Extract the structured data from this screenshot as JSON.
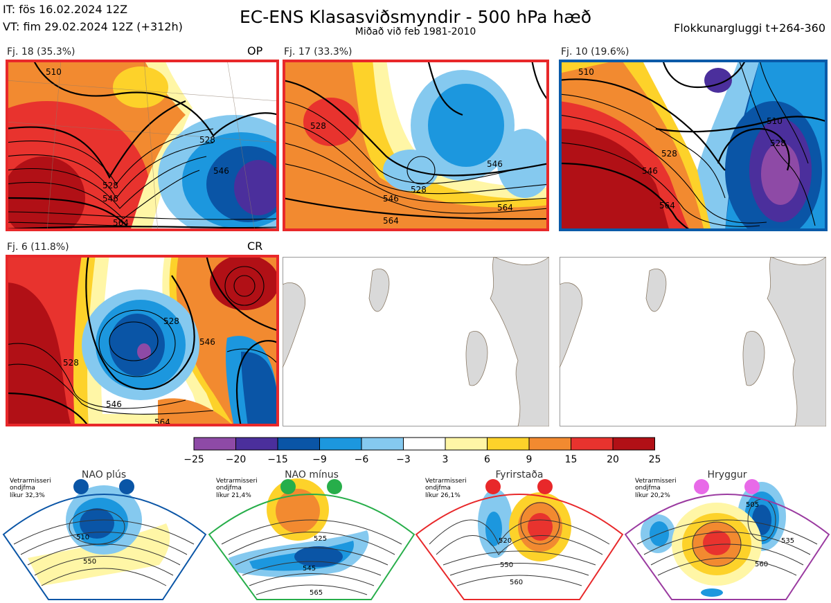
{
  "header": {
    "init_time": "IT: fös 16.02.2024 12Z",
    "valid_time": "VT: fim 29.02.2024 12Z  (+312h)",
    "title": "EC-ENS Klasasviðsmyndir - 500 hPa hæð",
    "subtitle": "Miðað við feb 1981-2010",
    "window": "Flokkunargluggi t+264-360"
  },
  "panels": [
    {
      "label": "Fj. 18 (35.3%)",
      "tag": "OP",
      "border_color": "#e8282a",
      "contours": [
        "510",
        "528",
        "546",
        "564",
        "528",
        "546"
      ]
    },
    {
      "label": "Fj. 17 (33.3%)",
      "tag": "",
      "border_color": "#e8282a",
      "contours": [
        "528",
        "528",
        "546",
        "546",
        "564",
        "564"
      ]
    },
    {
      "label": "Fj. 10 (19.6%)",
      "tag": "",
      "border_color": "#0a5aa8",
      "contours": [
        "510",
        "528",
        "546",
        "564",
        "510",
        "528"
      ]
    },
    {
      "label": "Fj. 6 (11.8%)",
      "tag": "CR",
      "border_color": "#e8282a",
      "contours": [
        "528",
        "528",
        "546",
        "546",
        "564"
      ]
    }
  ],
  "colorbar": {
    "colors": [
      "#8e4aa6",
      "#4b2f9c",
      "#0a55a6",
      "#1c97de",
      "#85c9ef",
      "#ffffff",
      "#fff6a6",
      "#fdd22a",
      "#f28a30",
      "#e8332e",
      "#b11016"
    ],
    "labels": [
      "−25",
      "−20",
      "−15",
      "−9",
      "−6",
      "−3",
      "3",
      "6",
      "9",
      "15",
      "20",
      "25"
    ]
  },
  "regimes": [
    {
      "name": "NAO plús",
      "color": "#0a55a6",
      "info": [
        "Vetrarmisseri",
        "ondjfma",
        "líkur 32,3%"
      ],
      "contours": [
        "510",
        "550"
      ]
    },
    {
      "name": "NAO mínus",
      "color": "#27ae4a",
      "info": [
        "Vetrarmisseri",
        "ondjfma",
        "líkur 21,4%"
      ],
      "contours": [
        "525",
        "545",
        "565"
      ]
    },
    {
      "name": "Fyrirstaða",
      "color": "#e8282a",
      "info": [
        "Vetrarmisseri",
        "ondjfma",
        "líkur 26,1%"
      ],
      "contours": [
        "520",
        "550",
        "560"
      ]
    },
    {
      "name": "Hryggur",
      "color": "#9a3aa0",
      "dot_color": "#e86ae8",
      "info": [
        "Vetrarmisseri",
        "ondjfma",
        "líkur 20,2%"
      ],
      "contours": [
        "505",
        "535",
        "560"
      ]
    }
  ]
}
